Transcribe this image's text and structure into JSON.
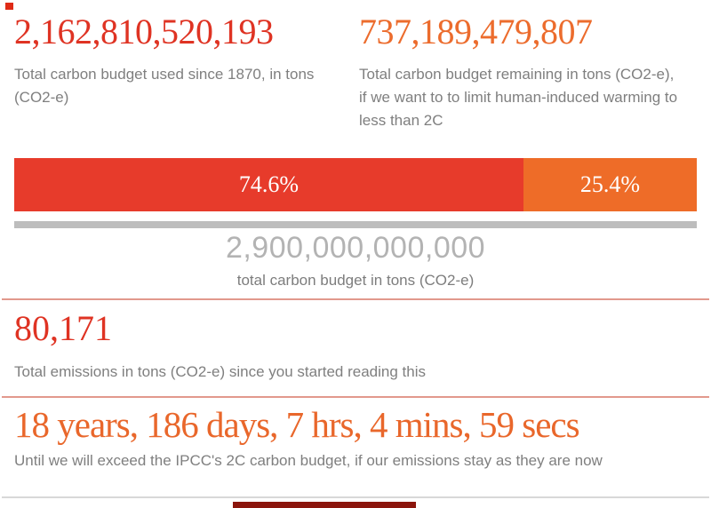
{
  "colors": {
    "used_red": "#df3323",
    "remaining_orange": "#ec6c2d",
    "countdown_orange": "#e9672b",
    "bar_used_red": "#e73b2b",
    "bar_remaining_orange": "#ee6c28",
    "total_number_gray": "#b3b3b3",
    "caption_gray": "#7f7f7f",
    "divider_salmon": "#e2998d",
    "track_gray": "#bdbdbd"
  },
  "used": {
    "value": "2,162,810,520,193",
    "caption": "Total carbon budget used since 1870, in tons (CO2-e)"
  },
  "remaining": {
    "value": "737,189,479,807",
    "caption": "Total carbon budget remaining in tons (CO2-e), if we want to to limit human-induced warming to less than 2C"
  },
  "total": {
    "value": "2,900,000,000,000",
    "caption": "total carbon budget in tons (CO2-e)"
  },
  "session": {
    "value": "80,171",
    "caption": "Total emissions in tons (CO2-e) since you started reading this"
  },
  "countdown": {
    "value": "18 years, 186 days, 7 hrs, 4 mins, 59 secs",
    "caption": "Until we will exceed the IPCC's 2C carbon budget, if our emissions stay as they are now"
  },
  "chart_data": {
    "type": "bar",
    "stacked": true,
    "orientation": "horizontal",
    "units": "percent of total carbon budget in tons (CO2-e)",
    "segments": [
      {
        "name": "used",
        "label": "74.6%",
        "value": 74.6,
        "color": "#e73b2b",
        "tons": "2,162,810,520,193"
      },
      {
        "name": "remaining",
        "label": "25.4%",
        "value": 25.4,
        "color": "#ee6c28",
        "tons": "737,189,479,807"
      }
    ],
    "total_tons": "2,900,000,000,000",
    "legend": "none",
    "axis": "none"
  }
}
